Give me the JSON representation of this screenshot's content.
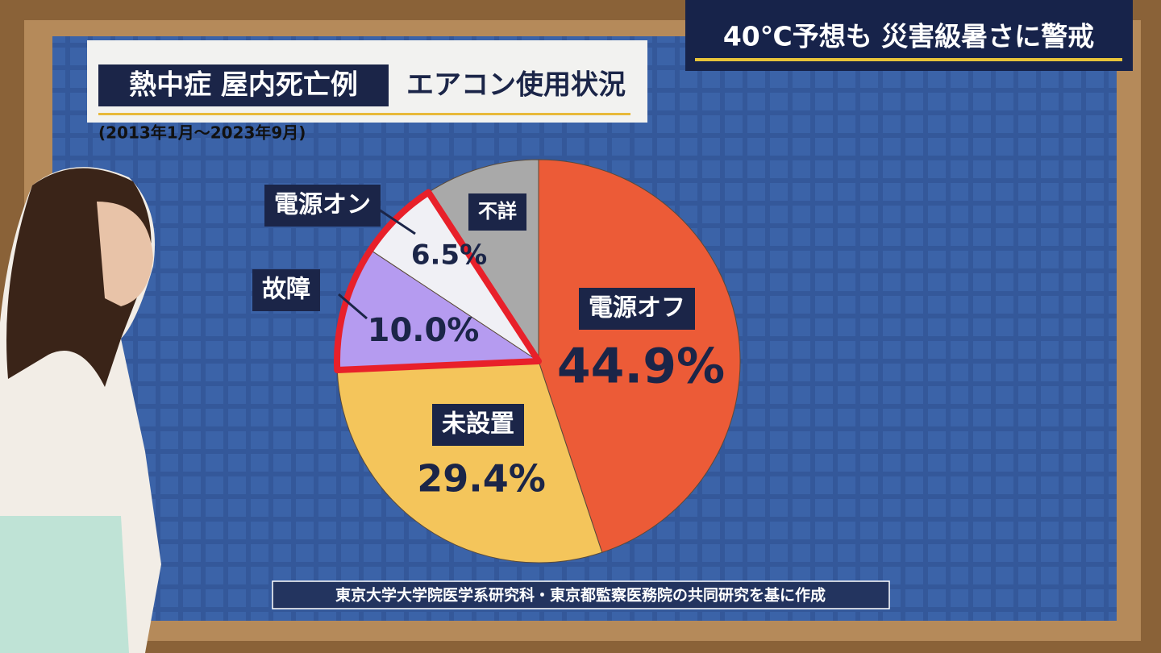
{
  "headline": "40℃予想も 災害級暑さに警戒",
  "chart_data": {
    "type": "pie",
    "title": "熱中症 屋内死亡例",
    "subtitle": "エアコン使用状況",
    "period": "(2013年1月～2023年9月)",
    "source": "東京大学大学院医学系研究科・東京都監察医務院の共同研究を基に作成",
    "categories": [
      "電源オフ",
      "未設置",
      "故障",
      "電源オン",
      "不詳"
    ],
    "values": [
      44.9,
      29.4,
      10.0,
      6.5,
      9.2
    ],
    "value_labels": [
      "44.9%",
      "29.4%",
      "10.0%",
      "6.5%",
      null
    ],
    "colors": [
      "#ec5b37",
      "#f4c55b",
      "#b59bf0",
      "#f0f0f5",
      "#a9a9a9"
    ]
  }
}
